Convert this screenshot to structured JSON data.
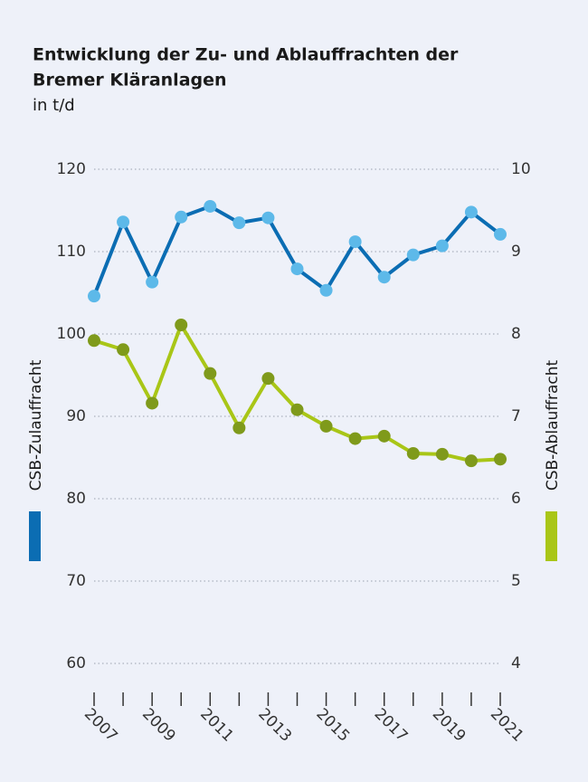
{
  "chart_data": {
    "type": "line",
    "title": [
      "Entwicklung der Zu- und Ablauffrachten der",
      "Bremer Kläranlagen"
    ],
    "subtitle": "in t/d",
    "categories": [
      "2007",
      null,
      "2009",
      null,
      "2011",
      null,
      "2013",
      null,
      "2015",
      null,
      "2017",
      null,
      "2019",
      null,
      "2021"
    ],
    "ylabel": "CSB-Zulauffracht",
    "y2label": "CSB-Ablauffracht",
    "ylim": [
      60,
      120
    ],
    "yticks": [
      60,
      70,
      80,
      90,
      100,
      110,
      120
    ],
    "y2lim": [
      4,
      10
    ],
    "y2ticks": [
      4,
      5,
      6,
      7,
      8,
      9,
      10
    ],
    "grid": true,
    "series": [
      {
        "name": "CSB-Zulauffracht",
        "color": "#0b6db3",
        "marker_color": "#5db9e9",
        "axis": "y",
        "values": [
          104.6,
          113.6,
          106.3,
          114.2,
          115.5,
          113.5,
          114.1,
          107.9,
          105.3,
          111.2,
          106.9,
          109.6,
          110.7,
          114.8,
          112.1
        ]
      },
      {
        "name": "CSB-Ablauffracht",
        "color": "#a9c617",
        "marker_color": "#7f9a1b",
        "axis": "y2",
        "values": [
          7.92,
          7.81,
          7.16,
          8.11,
          7.52,
          6.86,
          7.46,
          7.08,
          6.88,
          6.73,
          6.76,
          6.55,
          6.54,
          6.46,
          6.48
        ]
      }
    ]
  }
}
